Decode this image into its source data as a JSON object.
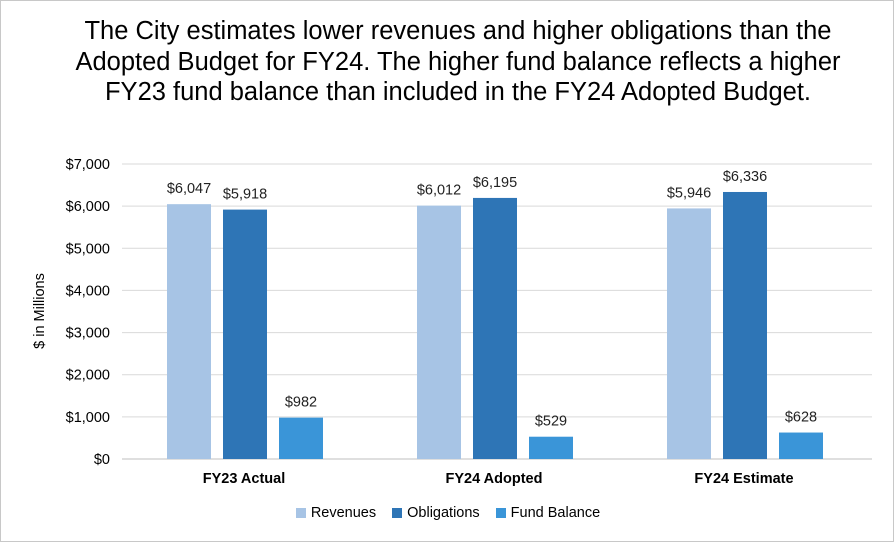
{
  "colors": {
    "revenues": "#A7C4E5",
    "obligations": "#2E75B6",
    "fund_balance": "#3A95D8",
    "gridline": "#D9D9D9",
    "axis": "#BFBFBF"
  },
  "chart_data": {
    "type": "bar",
    "title": "The City estimates lower revenues and higher obligations than the Adopted Budget for FY24. The higher fund balance reflects a higher FY23 fund balance than included in the FY24 Adopted Budget.",
    "xlabel": "",
    "ylabel": "$ in Millions",
    "ylim": [
      0,
      7000
    ],
    "yticks": [
      0,
      1000,
      2000,
      3000,
      4000,
      5000,
      6000,
      7000
    ],
    "ytick_labels": [
      "$0",
      "$1,000",
      "$2,000",
      "$3,000",
      "$4,000",
      "$5,000",
      "$6,000",
      "$7,000"
    ],
    "grid": true,
    "legend_position": "bottom",
    "categories": [
      "FY23 Actual",
      "FY24 Adopted",
      "FY24 Estimate"
    ],
    "series": [
      {
        "name": "Revenues",
        "color_key": "revenues",
        "values": [
          6047,
          6012,
          5946
        ],
        "labels": [
          "$6,047",
          "$6,012",
          "$5,946"
        ]
      },
      {
        "name": "Obligations",
        "color_key": "obligations",
        "values": [
          5918,
          6195,
          6336
        ],
        "labels": [
          "$5,918",
          "$6,195",
          "$6,336"
        ]
      },
      {
        "name": "Fund Balance",
        "color_key": "fund_balance",
        "values": [
          982,
          529,
          628
        ],
        "labels": [
          "$982",
          "$529",
          "$628"
        ]
      }
    ]
  }
}
